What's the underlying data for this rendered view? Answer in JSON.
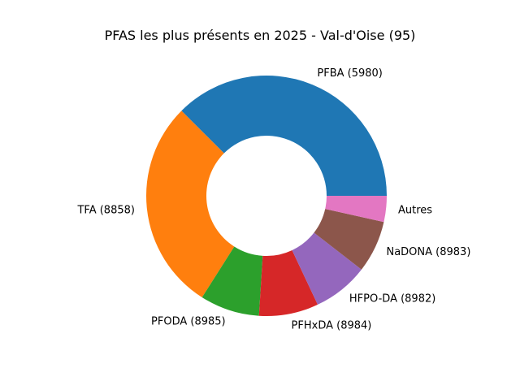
{
  "chart_data": {
    "type": "pie",
    "donut": true,
    "title": "PFAS les plus présents en 2025 - Val-d'Oise (95)",
    "start_angle_deg": 0,
    "direction": "counterclockwise",
    "slices": [
      {
        "label": "PFBA (5980)",
        "value": 37.5,
        "color": "#1f77b4"
      },
      {
        "label": "TFA (8858)",
        "value": 28.5,
        "color": "#ff7f0e"
      },
      {
        "label": "PFODA (8985)",
        "value": 8.0,
        "color": "#2ca02c"
      },
      {
        "label": "PFHxDA (8984)",
        "value": 8.0,
        "color": "#d62728"
      },
      {
        "label": "HFPO-DA (8982)",
        "value": 7.5,
        "color": "#9467bd"
      },
      {
        "label": "NaDONA (8983)",
        "value": 7.0,
        "color": "#8c564b"
      },
      {
        "label": "Autres",
        "value": 3.5,
        "color": "#e377c2"
      }
    ]
  }
}
